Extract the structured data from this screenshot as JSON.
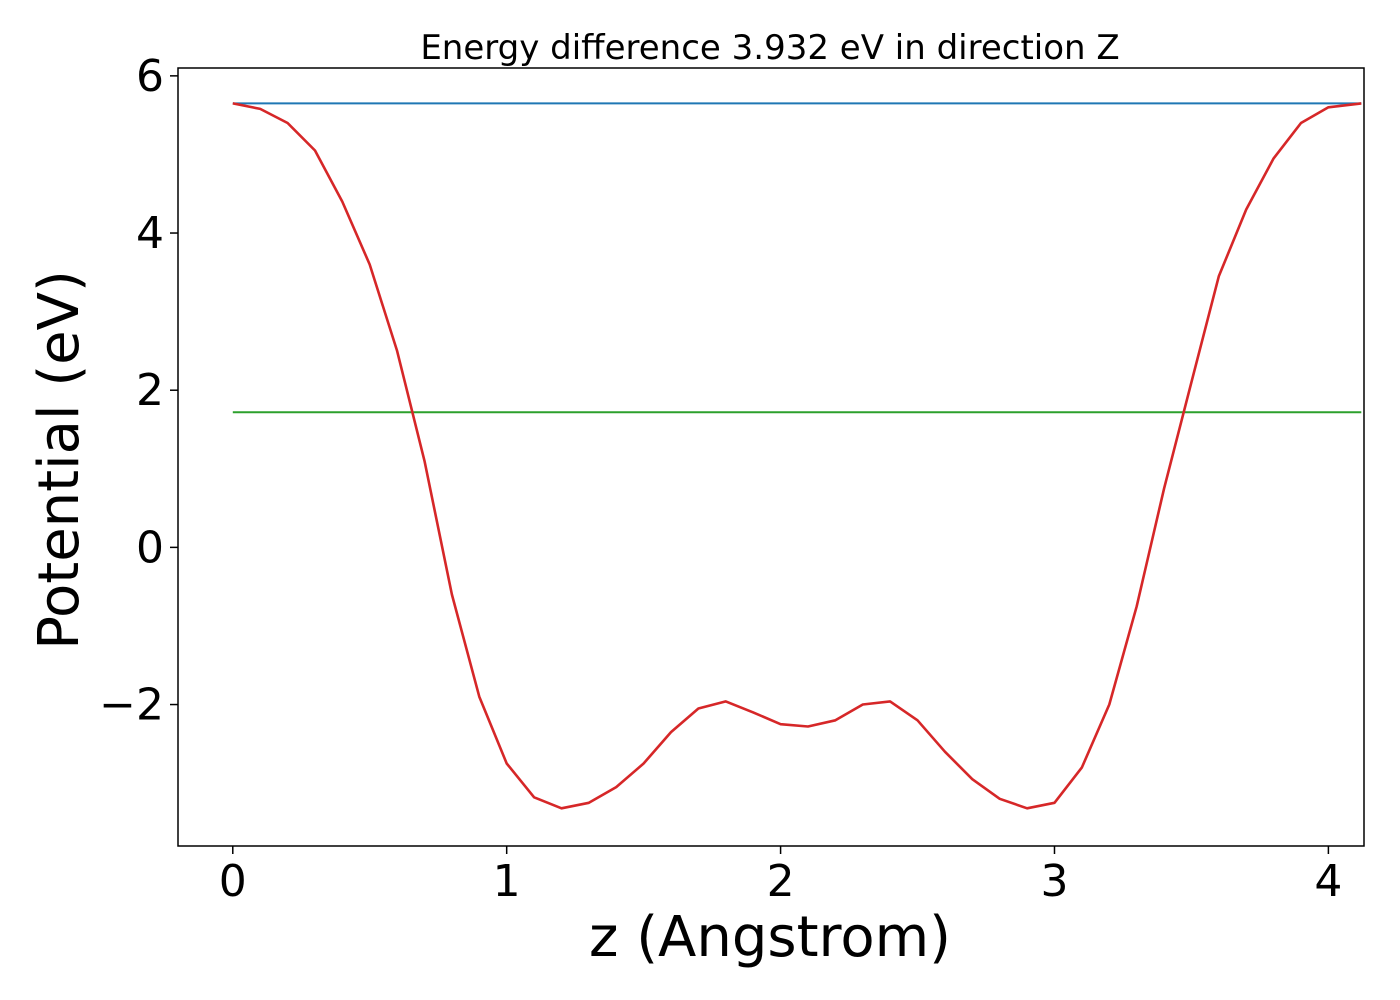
{
  "chart_data": {
    "type": "line",
    "title": "Energy difference 3.932 eV in direction Z",
    "xlabel": "z (Angstrom)",
    "ylabel": "Potential (eV)",
    "xlim": [
      -0.2,
      4.13
    ],
    "ylim": [
      -3.8,
      6.1
    ],
    "xticks": [
      0,
      1,
      2,
      3,
      4
    ],
    "xtick_labels": [
      "0",
      "1",
      "2",
      "3",
      "4"
    ],
    "yticks": [
      -2,
      0,
      2,
      4,
      6
    ],
    "ytick_labels": [
      "−2",
      "0",
      "2",
      "4",
      "6"
    ],
    "grid": false,
    "legend": "none",
    "series": [
      {
        "color": "#1f77b4",
        "x": [
          0,
          4.12
        ],
        "y": [
          5.65,
          5.65
        ]
      },
      {
        "color": "#2ca02c",
        "x": [
          0,
          4.12
        ],
        "y": [
          1.72,
          1.72
        ]
      },
      {
        "color": "#d62728",
        "x": [
          0,
          0.1,
          0.2,
          0.3,
          0.4,
          0.5,
          0.6,
          0.7,
          0.8,
          0.9,
          1.0,
          1.1,
          1.2,
          1.3,
          1.4,
          1.5,
          1.6,
          1.7,
          1.8,
          1.9,
          2.0,
          2.1,
          2.2,
          2.3,
          2.4,
          2.5,
          2.6,
          2.7,
          2.8,
          2.9,
          3.0,
          3.1,
          3.2,
          3.3,
          3.4,
          3.5,
          3.6,
          3.7,
          3.8,
          3.9,
          4.0,
          4.12
        ],
        "y": [
          5.65,
          5.58,
          5.4,
          5.05,
          4.4,
          3.6,
          2.5,
          1.1,
          -0.6,
          -1.9,
          -2.75,
          -3.18,
          -3.32,
          -3.25,
          -3.05,
          -2.75,
          -2.35,
          -2.05,
          -1.96,
          -2.1,
          -2.25,
          -2.28,
          -2.2,
          -2.0,
          -1.96,
          -2.2,
          -2.6,
          -2.95,
          -3.2,
          -3.32,
          -3.25,
          -2.8,
          -2.0,
          -0.75,
          0.75,
          2.1,
          3.45,
          4.3,
          4.95,
          5.4,
          5.6,
          5.65
        ]
      }
    ]
  }
}
